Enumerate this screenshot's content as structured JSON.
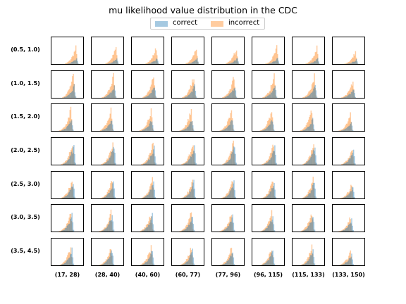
{
  "chart_data": {
    "type": "histogram-grid",
    "title": "mu likelihood value distribution in the CDC",
    "legend": {
      "placement": "top-center",
      "entries": [
        "correct",
        "incorrect"
      ]
    },
    "series": [
      {
        "name": "correct",
        "color": "#1f77b4"
      },
      {
        "name": "incorrect",
        "color": "#ff7f0e"
      }
    ],
    "row_labels": [
      "(0.5, 1.0)",
      "(1.0, 1.5)",
      "(1.5, 2.0)",
      "(2.0, 2.5)",
      "(2.5, 3.0)",
      "(3.0, 3.5)",
      "(3.5, 4.5)"
    ],
    "column_labels": [
      "(17, 28)",
      "(28, 40)",
      "(40, 60)",
      "(60, 77)",
      "(77, 96)",
      "(96, 115)",
      "(115, 133)",
      "(133, 150)"
    ],
    "axes_ticks_shown": false,
    "grid": false,
    "distribution_shape": "left-skewed, sharp peak near upper end",
    "peak_position_by_row": [
      0.78,
      0.7,
      0.62,
      0.68,
      0.66,
      0.62,
      0.62
    ],
    "peak_height_by_row": [
      0.65,
      0.88,
      0.85,
      0.88,
      0.75,
      0.75,
      0.72
    ]
  }
}
